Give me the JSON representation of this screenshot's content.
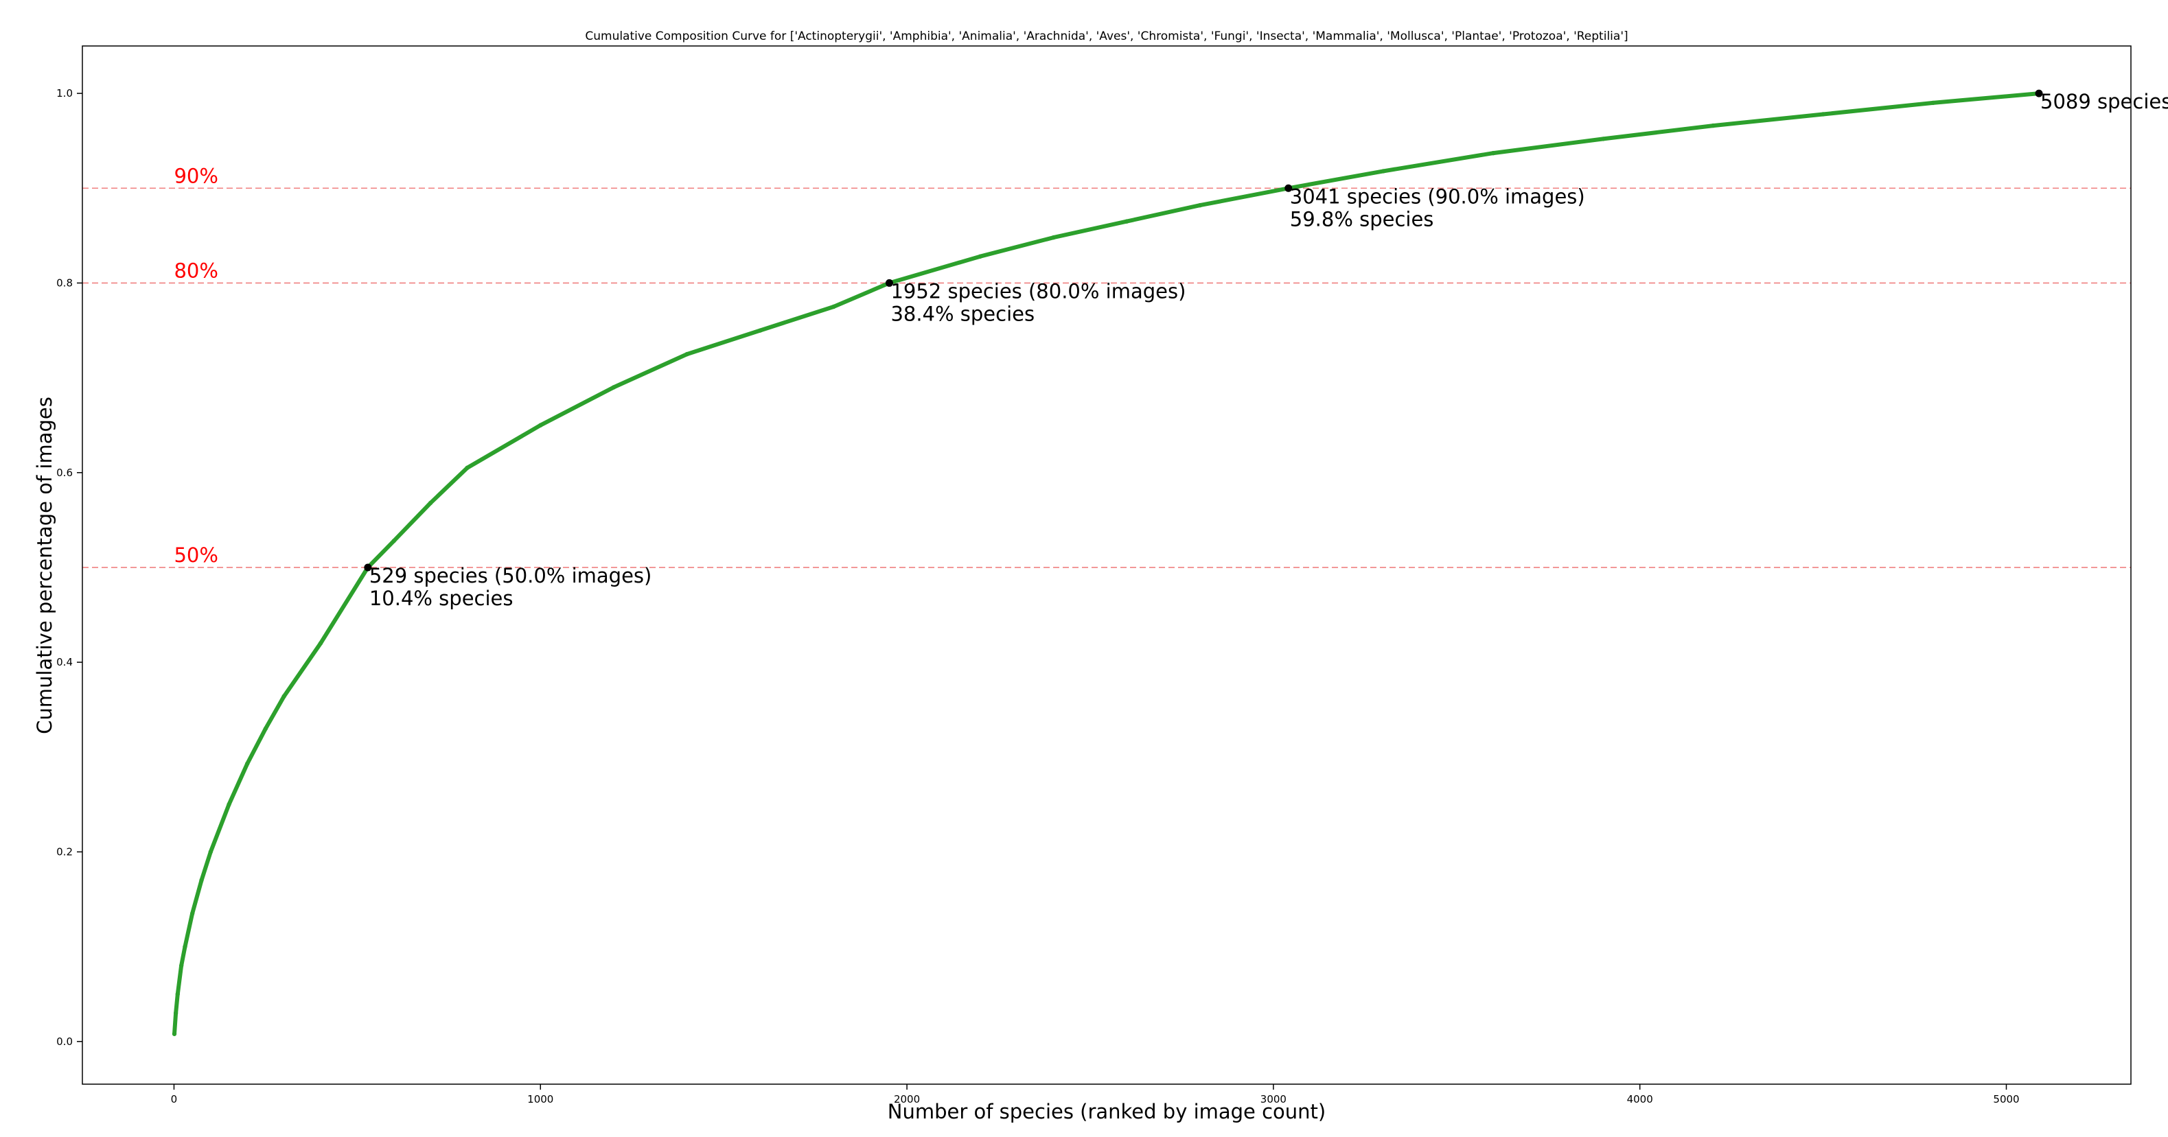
{
  "chart_data": {
    "type": "line",
    "title": "Cumulative Composition Curve for ['Actinopterygii', 'Amphibia', 'Animalia', 'Arachnida', 'Aves', 'Chromista', 'Fungi', 'Insecta', 'Mammalia', 'Mollusca', 'Plantae', 'Protozoa', 'Reptilia']",
    "xlabel": "Number of species (ranked by image count)",
    "ylabel": "Cumulative percentage of images",
    "xlim": [
      -250,
      5340
    ],
    "ylim": [
      -0.045,
      1.05
    ],
    "x_ticks": [
      0,
      1000,
      2000,
      3000,
      4000,
      5000
    ],
    "y_ticks": [
      0.0,
      0.2,
      0.4,
      0.6,
      0.8,
      1.0
    ],
    "x_tick_labels": [
      "0",
      "1000",
      "2000",
      "3000",
      "4000",
      "5000"
    ],
    "y_tick_labels": [
      "0.0",
      "0.2",
      "0.4",
      "0.6",
      "0.8",
      "1.0"
    ],
    "grid": false,
    "series": [
      {
        "color": "#2ca02c",
        "x": [
          1,
          5,
          10,
          20,
          30,
          50,
          75,
          100,
          150,
          200,
          250,
          300,
          400,
          529,
          600,
          700,
          800,
          1000,
          1200,
          1400,
          1600,
          1800,
          1952,
          2200,
          2400,
          2600,
          2800,
          3041,
          3300,
          3600,
          3900,
          4200,
          4500,
          4800,
          5089
        ],
        "y": [
          0.008,
          0.03,
          0.05,
          0.08,
          0.1,
          0.135,
          0.17,
          0.2,
          0.25,
          0.293,
          0.33,
          0.364,
          0.42,
          0.5,
          0.528,
          0.568,
          0.605,
          0.65,
          0.69,
          0.725,
          0.75,
          0.775,
          0.8,
          0.828,
          0.848,
          0.865,
          0.882,
          0.9,
          0.918,
          0.937,
          0.952,
          0.966,
          0.978,
          0.99,
          1.0
        ]
      }
    ],
    "thresholds": [
      {
        "y": 0.5,
        "label": "50%"
      },
      {
        "y": 0.8,
        "label": "80%"
      },
      {
        "y": 0.9,
        "label": "90%"
      }
    ],
    "threshold_color": "#f08080",
    "threshold_label_color": "#ff0000",
    "marker_color": "#000000",
    "annotations": [
      {
        "x": 529,
        "y": 0.5,
        "lines": [
          "529 species (50.0% images)",
          "10.4% species"
        ]
      },
      {
        "x": 1952,
        "y": 0.8,
        "lines": [
          "1952 species (80.0% images)",
          "38.4% species"
        ]
      },
      {
        "x": 3041,
        "y": 0.9,
        "lines": [
          "3041 species (90.0% images)",
          "59.8% species"
        ]
      },
      {
        "x": 5089,
        "y": 1.0,
        "lines": [
          "5089 species"
        ]
      }
    ]
  }
}
